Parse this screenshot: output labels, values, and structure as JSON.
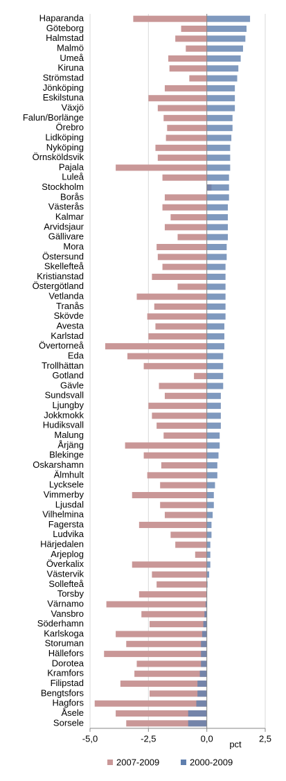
{
  "chart_data": {
    "type": "hbar-overlay",
    "categories": [
      "Haparanda",
      "Göteborg",
      "Halmstad",
      "Malmö",
      "Umeå",
      "Kiruna",
      "Strömstad",
      "Jönköping",
      "Eskilstuna",
      "Växjö",
      "Falun/Borlänge",
      "Örebro",
      "Lidköping",
      "Nyköping",
      "Örnsköldsvik",
      "Pajala",
      "Luleå",
      "Stockholm",
      "Borås",
      "Västerås",
      "Kalmar",
      "Arvidsjaur",
      "Gällivare",
      "Mora",
      "Östersund",
      "Skellefteå",
      "Kristianstad",
      "Östergötland",
      "Vetlanda",
      "Tranås",
      "Skövde",
      "Avesta",
      "Karlstad",
      "Övertorneå",
      "Eda",
      "Trollhättan",
      "Gotland",
      "Gävle",
      "Sundsvall",
      "Ljungby",
      "Jokkmokk",
      "Hudiksvall",
      "Malung",
      "Årjäng",
      "Blekinge",
      "Oskarshamn",
      "Älmhult",
      "Lycksele",
      "Vimmerby",
      "Ljusdal",
      "Vilhelmina",
      "Fagersta",
      "Ludvika",
      "Härjedalen",
      "Arjeplog",
      "Överkalix",
      "Västervik",
      "Sollefteå",
      "Torsby",
      "Värnamo",
      "Vansbro",
      "Söderhamn",
      "Karlskoga",
      "Storuman",
      "Hällefors",
      "Dorotea",
      "Kramfors",
      "Filipstad",
      "Bengtsfors",
      "Hagfors",
      "Åsele",
      "Sorsele"
    ],
    "series": [
      {
        "name": "2007-2009",
        "color": "#c99797",
        "values": [
          -3.15,
          -1.1,
          -1.35,
          -0.9,
          -1.65,
          -1.6,
          -0.75,
          -1.8,
          -2.5,
          -2.1,
          -1.85,
          -1.7,
          -1.75,
          -2.2,
          -2.1,
          -3.9,
          -1.9,
          0.2,
          -1.8,
          -1.9,
          -1.55,
          -1.8,
          -1.25,
          -2.15,
          -2.1,
          -1.9,
          -2.35,
          -1.25,
          -3.0,
          -2.25,
          -2.55,
          -2.2,
          -2.5,
          -4.35,
          -3.4,
          -2.7,
          -0.55,
          -2.05,
          -1.8,
          -2.5,
          -2.35,
          -2.15,
          -1.85,
          -3.5,
          -2.7,
          -1.95,
          -2.55,
          -2.0,
          -3.2,
          -2.0,
          -1.8,
          -2.9,
          -1.55,
          -1.35,
          -0.5,
          -3.2,
          -2.35,
          -2.15,
          -2.9,
          -4.3,
          -2.8,
          -2.45,
          -3.9,
          -3.45,
          -4.4,
          -3.0,
          -3.1,
          -3.7,
          -2.45,
          -4.8,
          -3.9,
          -3.45
        ]
      },
      {
        "name": "2000-2009",
        "color": "#5f7fae",
        "values": [
          1.85,
          1.7,
          1.65,
          1.55,
          1.45,
          1.35,
          1.3,
          1.2,
          1.2,
          1.2,
          1.1,
          1.1,
          1.05,
          1.0,
          1.0,
          1.0,
          0.95,
          0.95,
          0.95,
          0.9,
          0.9,
          0.9,
          0.9,
          0.85,
          0.85,
          0.8,
          0.8,
          0.8,
          0.8,
          0.8,
          0.8,
          0.75,
          0.75,
          0.75,
          0.7,
          0.7,
          0.7,
          0.7,
          0.6,
          0.6,
          0.6,
          0.6,
          0.55,
          0.55,
          0.5,
          0.45,
          0.45,
          0.35,
          0.3,
          0.3,
          0.25,
          0.2,
          0.2,
          0.15,
          0.15,
          0.15,
          0.1,
          0.03,
          -0.02,
          -0.05,
          -0.1,
          -0.15,
          -0.2,
          -0.25,
          -0.25,
          -0.25,
          -0.3,
          -0.4,
          -0.4,
          -0.45,
          -0.8,
          -0.8
        ]
      }
    ],
    "xlim": [
      -5,
      2.5
    ],
    "xticks": [
      {
        "value": -5,
        "label": "-5,0"
      },
      {
        "value": -2.5,
        "label": "-2,5"
      },
      {
        "value": 0,
        "label": "0,0"
      },
      {
        "value": 2.5,
        "label": "2,5"
      }
    ],
    "xlabel": "pct",
    "grid": true
  }
}
